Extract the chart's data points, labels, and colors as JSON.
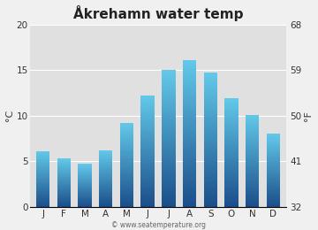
{
  "title": "Åkrehamn water temp",
  "months": [
    "J",
    "F",
    "M",
    "A",
    "M",
    "J",
    "J",
    "A",
    "S",
    "O",
    "N",
    "D"
  ],
  "values_c": [
    6.1,
    5.3,
    4.7,
    6.2,
    9.2,
    12.2,
    15.0,
    16.1,
    14.7,
    11.9,
    10.1,
    8.0
  ],
  "ylabel_left": "°C",
  "ylabel_right": "°F",
  "ylim_c": [
    0,
    20
  ],
  "yticks_c": [
    0,
    5,
    10,
    15,
    20
  ],
  "yticks_f": [
    32,
    41,
    50,
    59,
    68
  ],
  "bar_color_top": "#62c8e8",
  "bar_color_bottom": "#1a4e8a",
  "plot_bg": "#e0e0e0",
  "fig_bg": "#f0f0f0",
  "title_fontsize": 11,
  "tick_fontsize": 7.5,
  "label_fontsize": 8,
  "watermark": "© www.seatemperature.org",
  "watermark_fontsize": 5.5
}
